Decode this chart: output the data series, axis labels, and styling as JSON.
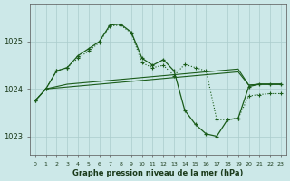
{
  "title": "Graphe pression niveau de la mer (hPa)",
  "bg_color": "#cce8e8",
  "grid_color": "#aacccc",
  "line_color": "#1a5c1a",
  "xlim": [
    -0.5,
    23.5
  ],
  "ylim": [
    1022.6,
    1025.8
  ],
  "yticks": [
    1023,
    1024,
    1025
  ],
  "xtick_labels": [
    "0",
    "1",
    "2",
    "3",
    "4",
    "5",
    "6",
    "7",
    "8",
    "9",
    "10",
    "11",
    "12",
    "13",
    "14",
    "15",
    "16",
    "17",
    "18",
    "19",
    "20",
    "21",
    "22",
    "23"
  ],
  "series1_x": [
    0,
    1,
    2,
    3,
    4,
    5,
    6,
    7,
    8,
    9,
    10,
    11,
    12,
    13,
    14,
    15,
    16,
    17,
    18,
    19,
    20,
    21,
    22,
    23
  ],
  "series1_y": [
    1023.75,
    1024.0,
    1024.02,
    1024.04,
    1024.06,
    1024.08,
    1024.1,
    1024.12,
    1024.14,
    1024.16,
    1024.18,
    1024.2,
    1024.22,
    1024.24,
    1024.26,
    1024.28,
    1024.3,
    1024.32,
    1024.34,
    1024.36,
    1024.08,
    1024.1,
    1024.1,
    1024.1
  ],
  "series2_x": [
    0,
    1,
    2,
    3,
    4,
    5,
    6,
    7,
    8,
    9,
    10,
    11,
    12,
    13,
    14,
    15,
    16,
    17,
    18,
    19,
    20,
    21,
    22,
    23
  ],
  "series2_y": [
    1023.75,
    1024.0,
    1024.38,
    1024.45,
    1024.7,
    1024.85,
    1025.0,
    1025.35,
    1025.37,
    1025.2,
    1024.65,
    1024.5,
    1024.62,
    1024.38,
    1023.55,
    1023.25,
    1023.05,
    1023.0,
    1023.35,
    1023.38,
    1024.05,
    1024.1,
    1024.1,
    1024.1
  ],
  "series3_x": [
    1,
    3,
    4,
    5,
    6,
    7,
    8,
    9,
    10,
    11,
    12,
    13,
    14,
    15,
    16,
    17,
    18,
    19,
    20,
    21,
    22,
    23
  ],
  "series3_y": [
    1024.0,
    1024.1,
    1024.12,
    1024.14,
    1024.16,
    1024.18,
    1024.2,
    1024.22,
    1024.24,
    1024.26,
    1024.28,
    1024.3,
    1024.32,
    1024.34,
    1024.36,
    1024.38,
    1024.4,
    1024.42,
    1024.08,
    1024.1,
    1024.1,
    1024.1
  ],
  "series4_x": [
    0,
    1,
    2,
    3,
    4,
    5,
    6,
    7,
    8,
    9,
    10,
    11,
    12,
    13,
    14,
    15,
    16,
    17,
    18,
    19,
    20,
    21,
    22,
    23
  ],
  "series4_y": [
    1023.75,
    1024.0,
    1024.38,
    1024.45,
    1024.65,
    1024.8,
    1024.98,
    1025.33,
    1025.35,
    1025.18,
    1024.55,
    1024.45,
    1024.5,
    1024.28,
    1024.52,
    1024.45,
    1024.38,
    1023.35,
    1023.35,
    1023.38,
    1023.85,
    1023.88,
    1023.9,
    1023.9
  ]
}
